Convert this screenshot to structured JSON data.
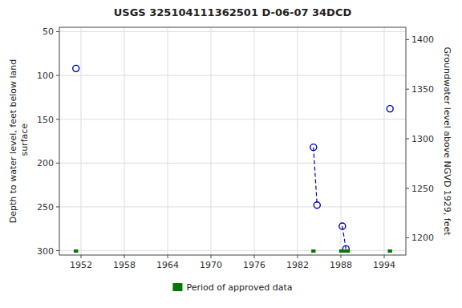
{
  "chart_data": {
    "type": "scatter",
    "title": "USGS 325104111362501 D-06-07 34DCD",
    "y_label": "Depth to water level, feet below land\n surface",
    "y2_label": "Groundwater level above NGVD 1929, feet",
    "xlim": [
      1949,
      1997
    ],
    "xticks": [
      1952,
      1958,
      1964,
      1970,
      1976,
      1982,
      1988,
      1994
    ],
    "ylim": [
      305,
      45
    ],
    "yticks": [
      50,
      100,
      150,
      200,
      250,
      300
    ],
    "y2lim": [
      1182.5,
      1412.5
    ],
    "y2ticks": [
      1200,
      1250,
      1300,
      1350,
      1400
    ],
    "grid": true,
    "legend": "bottom",
    "series": [
      {
        "type": "scatter",
        "marker": "circle",
        "color": "#0000bb",
        "x": [
          1951.3,
          1984.2,
          1984.7,
          1988.2,
          1988.7,
          1994.8
        ],
        "values": [
          92,
          182,
          248,
          272,
          298,
          138
        ]
      },
      {
        "type": "line",
        "line_style": "dashed",
        "color": "#0000bb",
        "x": [
          1984.2,
          1984.7,
          null,
          1988.2,
          1988.7
        ],
        "values": [
          182,
          248,
          null,
          272,
          298
        ]
      },
      {
        "type": "bar",
        "name": "Period of approved data",
        "color": "#007700",
        "x": [
          1951.3,
          1984.2,
          1988.5,
          1994.8
        ],
        "widths": [
          0.6,
          0.6,
          1.5,
          0.6
        ]
      }
    ]
  }
}
